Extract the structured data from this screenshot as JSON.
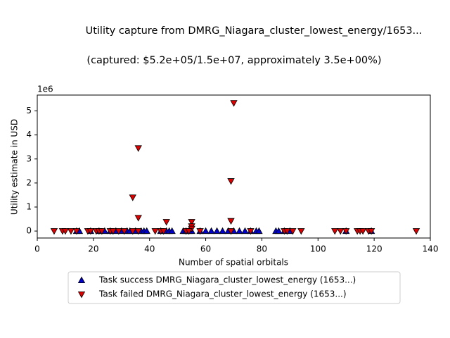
{
  "chart_data": {
    "type": "scatter",
    "title": "Utility capture from DMRG_Niagara_cluster_lowest_energy/1653...",
    "subtitle": "(captured: $5.2e+05/1.5e+07, approximately 3.5e+00%)",
    "xlabel": "Number of spatial orbitals",
    "ylabel": "Utility estimate in USD",
    "y_offset_label": "1e6",
    "xlim": [
      0,
      140
    ],
    "ylim": [
      -0.29,
      5.66
    ],
    "xticks": [
      0,
      20,
      40,
      60,
      80,
      100,
      120,
      140
    ],
    "yticks": [
      0,
      1,
      2,
      3,
      4,
      5
    ],
    "grid": false,
    "legend": "below",
    "series": [
      {
        "name": "Task success DMRG_Niagara_cluster_lowest_energy (1653...)",
        "color": "#0000cc",
        "marker": "triangle-up",
        "x": [
          14,
          15,
          19,
          22,
          24,
          26,
          28,
          30,
          32,
          33,
          35,
          37,
          38,
          39,
          44,
          46,
          47,
          48,
          52,
          53,
          54,
          55,
          58,
          60,
          62,
          64,
          66,
          68,
          70,
          72,
          74,
          76,
          78,
          79,
          85,
          86,
          88,
          90,
          110,
          119
        ],
        "y": [
          0,
          0,
          0,
          0,
          0,
          0,
          0,
          0,
          0,
          0,
          0,
          0,
          0,
          0,
          0,
          0,
          0,
          0,
          0,
          0,
          0,
          0,
          0,
          0,
          0,
          0,
          0,
          0,
          0,
          0,
          0,
          0,
          0,
          0,
          0,
          0,
          0,
          0,
          0,
          0
        ]
      },
      {
        "name": "Task failed DMRG_Niagara_cluster_lowest_energy (1653...)",
        "color": "#dd0000",
        "marker": "triangle-down",
        "x": [
          70,
          36,
          69,
          34,
          36,
          46,
          55,
          69,
          55,
          55,
          6,
          9,
          10,
          12,
          14,
          18,
          19,
          21,
          22,
          23,
          26,
          27,
          29,
          31,
          34,
          36,
          42,
          44,
          45,
          53,
          54,
          58,
          69,
          76,
          88,
          89,
          91,
          94,
          106,
          108,
          110,
          114,
          115,
          116,
          118,
          119,
          135
        ],
        "y": [
          5.33,
          3.45,
          2.08,
          1.4,
          0.55,
          0.38,
          0.38,
          0.42,
          0.2,
          0.1,
          0,
          0,
          0,
          0,
          0,
          0,
          0,
          0,
          0,
          0,
          0,
          0,
          0,
          0,
          0,
          0,
          0,
          0,
          0,
          0,
          0,
          0,
          0,
          0,
          0,
          0,
          0,
          0,
          0,
          0,
          0,
          0,
          0,
          0,
          0,
          0,
          0
        ]
      }
    ]
  }
}
